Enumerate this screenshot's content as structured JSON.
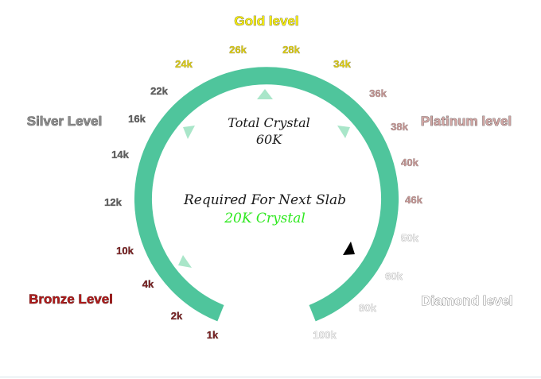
{
  "levels": {
    "gold": {
      "label": "Gold level",
      "color": "#f7ee12"
    },
    "silver": {
      "label": "Silver Level",
      "color": "#8c8c8c"
    },
    "platinum": {
      "label": "Platinum level",
      "color": "#d2a6a4"
    },
    "bronze": {
      "label": "Bronze Level",
      "color": "#b31a1a"
    },
    "diamond": {
      "label": "Diamond level",
      "color": "#ffffff"
    }
  },
  "ticks": [
    {
      "label": "1k",
      "color": "#7b2324"
    },
    {
      "label": "2k",
      "color": "#7b2324"
    },
    {
      "label": "4k",
      "color": "#7b2324"
    },
    {
      "label": "10k",
      "color": "#7b2324"
    },
    {
      "label": "12k",
      "color": "#5f5f5f"
    },
    {
      "label": "14k",
      "color": "#5f5f5f"
    },
    {
      "label": "16k",
      "color": "#5f5f5f"
    },
    {
      "label": "22k",
      "color": "#5f5f5f"
    },
    {
      "label": "24k",
      "color": "#d9c913"
    },
    {
      "label": "26k",
      "color": "#d9c913"
    },
    {
      "label": "28k",
      "color": "#d9c913"
    },
    {
      "label": "34k",
      "color": "#d9c913"
    },
    {
      "label": "36k",
      "color": "#c49593"
    },
    {
      "label": "38k",
      "color": "#c49593"
    },
    {
      "label": "40k",
      "color": "#c49593"
    },
    {
      "label": "46k",
      "color": "#c49593"
    },
    {
      "label": "50k",
      "color": "#f2f2f2"
    },
    {
      "label": "60k",
      "color": "#f2f2f2"
    },
    {
      "label": "80k",
      "color": "#f2f2f2"
    },
    {
      "label": "100k",
      "color": "#f2f2f2"
    }
  ],
  "center": {
    "total_label": "Total Crystal",
    "total_value": "60K",
    "required_label": "Required For Next Slab",
    "required_value": "20K Crystal",
    "required_value_color": "#2ee81f"
  },
  "gauge": {
    "ring_color": "#4fc59c",
    "arrow_color": "#a9e6c9",
    "pointer_color": "#000000"
  }
}
